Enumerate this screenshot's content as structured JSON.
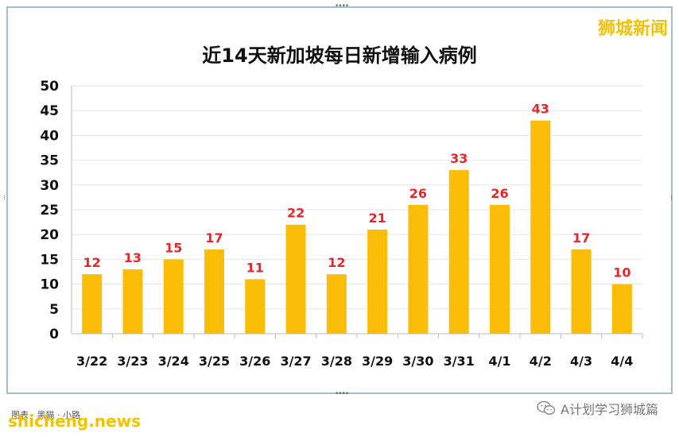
{
  "brand_top": "狮城新闻",
  "chart_data": {
    "type": "bar",
    "title": "近14天新加坡每日新增输入病例",
    "categories": [
      "3/22",
      "3/23",
      "3/24",
      "3/25",
      "3/26",
      "3/27",
      "3/28",
      "3/29",
      "3/30",
      "3/31",
      "4/1",
      "4/2",
      "4/3",
      "4/4"
    ],
    "values": [
      12,
      13,
      15,
      17,
      11,
      22,
      12,
      21,
      26,
      33,
      26,
      43,
      17,
      10
    ],
    "ylim": [
      0,
      50
    ],
    "yticks": [
      0,
      5,
      10,
      15,
      20,
      25,
      30,
      35,
      40,
      45,
      50
    ],
    "grid": true,
    "bar_color": "#fbbd08",
    "label_color": "#e8262a"
  },
  "footer": {
    "site": "shicheng.news",
    "note": "图表 · 黑猫 · 小路",
    "account": "A计划学习狮城篇"
  }
}
